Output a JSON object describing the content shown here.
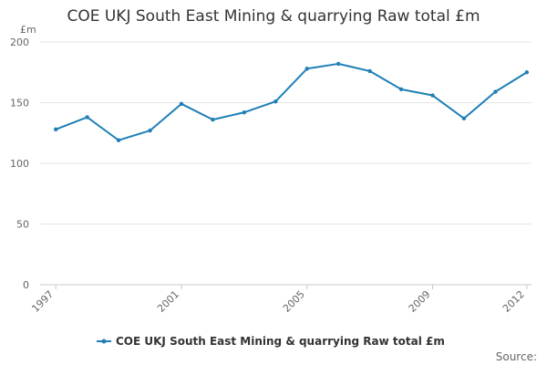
{
  "chart_data": {
    "type": "line",
    "title": "COE UKJ South East Mining & quarrying Raw total £m",
    "y_unit": "£m",
    "x": [
      1997,
      1998,
      1999,
      2000,
      2001,
      2002,
      2003,
      2004,
      2005,
      2006,
      2007,
      2008,
      2009,
      2010,
      2011,
      2012
    ],
    "x_tick_labels": [
      "1997",
      "2001",
      "2005",
      "2009",
      "2012"
    ],
    "y_ticks": [
      0,
      50,
      100,
      150,
      200
    ],
    "ylim": [
      0,
      200
    ],
    "grid": true,
    "legend_position": "bottom",
    "series": [
      {
        "name": "COE UKJ South East Mining & quarrying Raw total £m",
        "color": "#1f7fb6",
        "values": [
          128,
          138,
          119,
          127,
          149,
          136,
          142,
          151,
          178,
          182,
          176,
          161,
          156,
          137,
          159,
          175
        ]
      }
    ],
    "source_label": "Source:"
  }
}
